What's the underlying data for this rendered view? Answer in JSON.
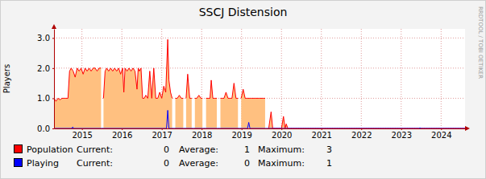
{
  "chart_data": {
    "type": "line",
    "title": "SSCJ Distension",
    "y_label": "Players",
    "watermark": "RRDTOOL / TOBI OETIKER",
    "xlim": [
      2014.8,
      2025.1
    ],
    "xticks": [
      {
        "value": 2015.5,
        "label": "2015"
      },
      {
        "value": 2016.5,
        "label": "2016"
      },
      {
        "value": 2017.5,
        "label": "2017"
      },
      {
        "value": 2018.5,
        "label": "2018"
      },
      {
        "value": 2019.5,
        "label": "2019"
      },
      {
        "value": 2020.5,
        "label": "2020"
      },
      {
        "value": 2021.5,
        "label": "2021"
      },
      {
        "value": 2022.5,
        "label": "2022"
      },
      {
        "value": 2023.5,
        "label": "2023"
      },
      {
        "value": 2024.5,
        "label": "2024"
      }
    ],
    "ylim": [
      0,
      3.3
    ],
    "yticks": [
      {
        "value": 0,
        "label": "0.0"
      },
      {
        "value": 1,
        "label": "1.0"
      },
      {
        "value": 2,
        "label": "2.0"
      },
      {
        "value": 3,
        "label": "3.0"
      }
    ],
    "grid": true,
    "legend": "bottom",
    "stat_labels": [
      "Current:",
      "Average:",
      "Maximum:"
    ],
    "series": [
      {
        "name": "Population",
        "type": "area",
        "color": "#ff0000",
        "current": 0,
        "average": 1,
        "maximum": 3,
        "x": [
          2014.8,
          2014.85,
          2014.9,
          2014.95,
          2015.0,
          2015.05,
          2015.1,
          2015.15,
          2015.19,
          2015.23,
          2015.28,
          2015.33,
          2015.38,
          2015.43,
          2015.48,
          2015.53,
          2015.58,
          2015.63,
          2015.68,
          2015.73,
          2015.78,
          2015.83,
          2015.88,
          2015.93,
          2015.98,
          2016.01,
          2016.04,
          2016.08,
          2016.12,
          2016.17,
          2016.22,
          2016.27,
          2016.32,
          2016.37,
          2016.42,
          2016.47,
          2016.52,
          2016.55,
          2016.58,
          2016.63,
          2016.68,
          2016.73,
          2016.78,
          2016.83,
          2016.88,
          2016.91,
          2016.94,
          2016.98,
          2017.02,
          2017.06,
          2017.1,
          2017.15,
          2017.2,
          2017.25,
          2017.3,
          2017.35,
          2017.4,
          2017.45,
          2017.5,
          2017.55,
          2017.6,
          2017.65,
          2017.68,
          2017.72,
          2017.76,
          2017.8,
          2017.84,
          2017.89,
          2017.94,
          2017.99,
          2018.04,
          2018.08,
          2018.11,
          2018.15,
          2018.2,
          2018.25,
          2018.29,
          2018.33,
          2018.38,
          2018.43,
          2018.48,
          2018.52,
          2018.56,
          2018.61,
          2018.66,
          2018.71,
          2018.74,
          2018.78,
          2018.83,
          2018.88,
          2018.93,
          2018.97,
          2019.01,
          2019.06,
          2019.11,
          2019.16,
          2019.21,
          2019.26,
          2019.31,
          2019.36,
          2019.41,
          2019.45,
          2019.49,
          2019.54,
          2019.59,
          2019.64,
          2019.69,
          2019.74,
          2019.79,
          2019.84,
          2019.89,
          2019.94,
          2019.99,
          2020.04,
          2020.09,
          2020.13,
          2020.18,
          2020.24,
          2020.28,
          2020.5,
          2020.55,
          2020.59,
          2020.62,
          2020.66,
          2021.5,
          2022.5,
          2023.5,
          2024.5,
          2025.1
        ],
        "values": [
          1.0,
          0.9,
          1.0,
          0.95,
          1.0,
          1.0,
          1.0,
          1.0,
          1.9,
          2.0,
          1.9,
          1.7,
          2.0,
          1.9,
          2.0,
          1.8,
          2.0,
          1.9,
          2.0,
          1.9,
          2.0,
          2.0,
          1.9,
          2.0,
          2.0,
          null,
          1.0,
          1.9,
          2.0,
          1.9,
          2.0,
          1.9,
          2.0,
          1.9,
          2.0,
          1.8,
          2.0,
          1.2,
          2.0,
          1.9,
          2.0,
          1.9,
          2.0,
          1.9,
          1.3,
          2.0,
          1.9,
          2.0,
          1.0,
          1.0,
          1.1,
          1.0,
          1.9,
          1.0,
          2.0,
          1.0,
          1.0,
          1.2,
          1.0,
          1.4,
          1.2,
          2.95,
          1.6,
          1.2,
          1.0,
          null,
          1.0,
          1.0,
          1.1,
          1.0,
          1.0,
          null,
          1.0,
          1.8,
          1.0,
          1.0,
          null,
          1.0,
          1.0,
          1.1,
          1.0,
          1.0,
          null,
          1.0,
          1.0,
          1.0,
          1.6,
          1.0,
          1.0,
          1.0,
          null,
          1.0,
          1.0,
          1.0,
          1.2,
          1.0,
          1.0,
          1.0,
          1.5,
          1.0,
          1.0,
          null,
          1.0,
          1.3,
          1.0,
          1.0,
          1.0,
          1.0,
          1.0,
          1.0,
          1.0,
          1.0,
          1.0,
          1.0,
          1.0,
          null,
          0,
          0.55,
          0,
          0,
          0.4,
          0,
          0.15,
          0,
          0,
          0,
          0,
          0,
          0
        ]
      },
      {
        "name": "Playing",
        "type": "line",
        "color": "#0000ff",
        "current": 0,
        "average": 0,
        "maximum": 1,
        "x": [
          2014.8,
          2015.25,
          2015.27,
          2015.29,
          2017.62,
          2017.65,
          2017.68,
          2019.65,
          2019.68,
          2019.71,
          2023.95,
          2023.97,
          2023.99,
          2025.1
        ],
        "values": [
          0,
          0,
          0.05,
          0,
          0,
          0.6,
          0,
          0,
          0.2,
          0,
          0,
          0.02,
          0,
          0
        ]
      }
    ]
  }
}
